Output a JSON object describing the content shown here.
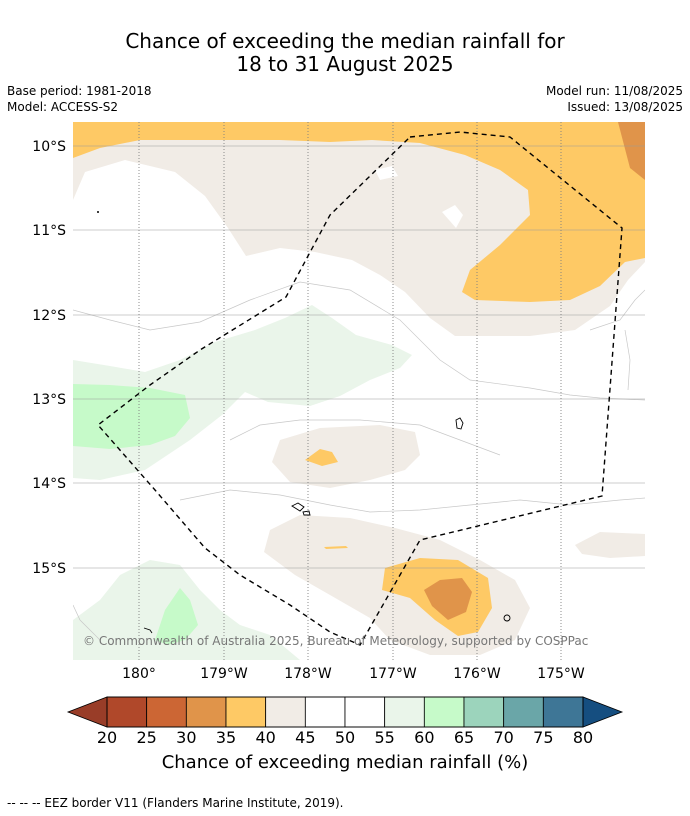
{
  "header": {
    "title_line1": "Chance of exceeding the median rainfall for",
    "title_line2": "18 to 31 August 2025",
    "base_period": "Base period: 1981-2018",
    "model": "Model: ACCESS-S2",
    "model_run": "Model run: 11/08/2025",
    "issued": "Issued: 13/08/2025"
  },
  "map": {
    "lat_labels": [
      "10°S",
      "11°S",
      "12°S",
      "13°S",
      "14°S",
      "15°S"
    ],
    "lon_labels": [
      "180°",
      "179°W",
      "178°W",
      "177°W",
      "176°W",
      "175°W"
    ],
    "copyright": "© Commonwealth of Australia 2025, Bureau of Meteorology, supported by COSPPac"
  },
  "colorbar": {
    "ticks": [
      "20",
      "25",
      "30",
      "35",
      "40",
      "45",
      "50",
      "55",
      "60",
      "65",
      "70",
      "75",
      "80"
    ],
    "colors": [
      "#b0482a",
      "#cc6634",
      "#e0944a",
      "#fec965",
      "#f1ece6",
      "#ffffff",
      "#ffffff",
      "#eaf5ea",
      "#c6fac9",
      "#9cd4bc",
      "#6aa6a8",
      "#3e7696"
    ],
    "under_color": "#993d28",
    "over_color": "#154e80",
    "label": "Chance of exceeding median rainfall (%)"
  },
  "legend": {
    "eez_line": "--  --  -- EEZ border V11 (Flanders Marine Institute, 2019)."
  }
}
